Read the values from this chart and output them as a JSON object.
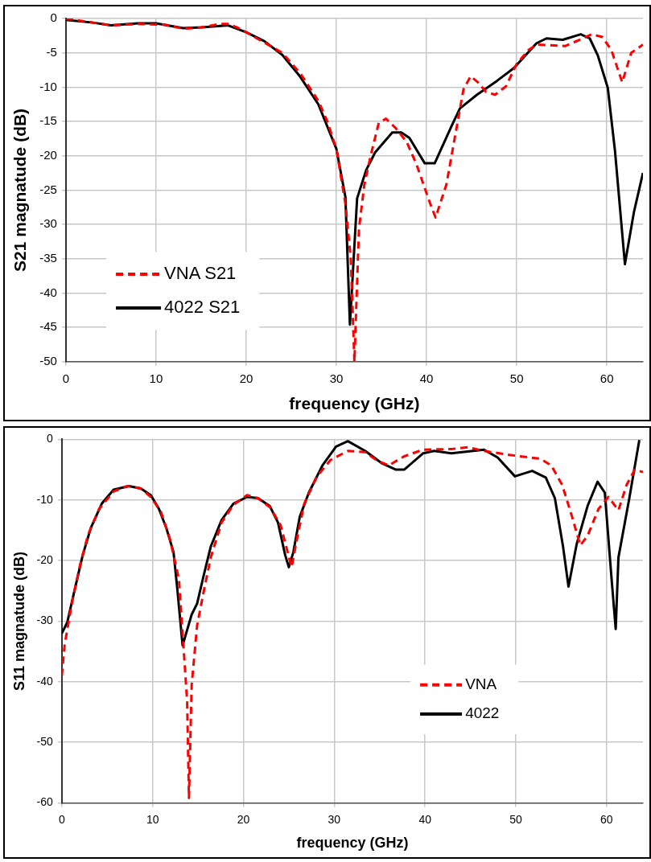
{
  "chart_data": [
    {
      "type": "line",
      "xlabel": "frequency (GHz)",
      "ylabel": "S21 magnatude (dB)",
      "xlim": [
        0,
        64
      ],
      "xticks": [
        0,
        10,
        20,
        30,
        40,
        50,
        60
      ],
      "ylim": [
        -50,
        0
      ],
      "yticks": [
        0,
        -5,
        -10,
        -15,
        -20,
        -25,
        -30,
        -35,
        -40,
        -45,
        -50
      ],
      "grid": true,
      "legend": "bottom left",
      "marker": "none",
      "series": [
        {
          "name": "VNA S21",
          "color": "#ff0000",
          "line_style": "dashed",
          "x": [
            0,
            3,
            5,
            8,
            11,
            13,
            15,
            17,
            18,
            19,
            20,
            22,
            24,
            26,
            28,
            29,
            30,
            31,
            31.6,
            32,
            32.5,
            33.1,
            33.8,
            34.7,
            35.5,
            36.6,
            37.8,
            38.9,
            40.3,
            41,
            42.2,
            43.1,
            44.1,
            44.9,
            45.7,
            46.6,
            47.6,
            48.8,
            50,
            51.3,
            52.2,
            55.4,
            57,
            58.3,
            59.5,
            60.5,
            61.7,
            62.7,
            64
          ],
          "values": [
            0,
            -0.6,
            -1,
            -0.8,
            -0.9,
            -1.5,
            -1.3,
            -0.8,
            -0.8,
            -1.3,
            -2,
            -3.5,
            -5,
            -8,
            -12,
            -15,
            -19,
            -27,
            -35,
            -50,
            -30.7,
            -24.2,
            -20,
            -15.2,
            -14.6,
            -16,
            -18,
            -21.3,
            -26.6,
            -29,
            -24.2,
            -17.6,
            -10.3,
            -8.4,
            -9.3,
            -10.7,
            -11.1,
            -9.9,
            -6.6,
            -4.6,
            -3.8,
            -4,
            -3.1,
            -2.3,
            -2.7,
            -4.6,
            -9.3,
            -5,
            -3.8
          ]
        },
        {
          "name": "4022 S21",
          "color": "#000000",
          "line_style": "solid",
          "x": [
            0,
            3,
            5,
            8,
            10,
            13,
            15,
            18,
            20,
            22,
            24,
            26,
            28,
            30,
            31,
            31.5,
            32.3,
            33.3,
            34.3,
            36.2,
            37.2,
            38.1,
            39.8,
            40.9,
            42.8,
            43.7,
            45.6,
            47.8,
            49.7,
            52.2,
            53.3,
            55.1,
            57.1,
            58.1,
            59,
            60.1,
            60.9,
            62,
            63,
            64
          ],
          "values": [
            -0.2,
            -0.6,
            -1,
            -0.7,
            -0.7,
            -1.4,
            -1.3,
            -1,
            -2,
            -3.3,
            -5.3,
            -8.5,
            -12.5,
            -19,
            -26,
            -44.6,
            -26.2,
            -22.1,
            -19.5,
            -16.6,
            -16.6,
            -17.4,
            -21.1,
            -21.1,
            -15.6,
            -13.1,
            -11.1,
            -9.1,
            -7.2,
            -3.6,
            -2.9,
            -3.1,
            -2.3,
            -2.9,
            -5.4,
            -10.1,
            -19.3,
            -35.8,
            -28.2,
            -22.5
          ]
        }
      ]
    },
    {
      "type": "line",
      "xlabel": "frequency (GHz)",
      "ylabel": "S11 magnatude (dB)",
      "xlim": [
        0,
        64
      ],
      "xticks": [
        0,
        10,
        20,
        30,
        40,
        50,
        60
      ],
      "ylim": [
        -60,
        0
      ],
      "yticks": [
        0,
        -10,
        -20,
        -30,
        -40,
        -50,
        -60
      ],
      "grid": true,
      "legend": "right",
      "marker": "none",
      "series": [
        {
          "name": "VNA",
          "color": "#ff0000",
          "line_style": "dashed",
          "x": [
            0,
            0.3,
            1.1,
            2,
            2.9,
            4.1,
            5.7,
            7.2,
            8.7,
            9.8,
            10.9,
            11.9,
            12.9,
            13.3,
            13.8,
            14,
            14.3,
            14.9,
            15.6,
            16.4,
            17.6,
            18.9,
            20.4,
            21.6,
            23,
            24.1,
            24.8,
            25.3,
            25.9,
            26.7,
            28.1,
            29.6,
            31.5,
            33.4,
            34.6,
            36,
            37.7,
            39.8,
            42.9,
            44.7,
            46.5,
            49,
            50.5,
            52.7,
            53.9,
            55.1,
            56.2,
            57.1,
            57.9,
            59.1,
            60.2,
            61.3,
            62.2,
            63.1,
            64
          ],
          "values": [
            -39,
            -34,
            -27.1,
            -20.8,
            -15.7,
            -11.5,
            -8.6,
            -7.7,
            -8.1,
            -9.5,
            -11.9,
            -16.4,
            -23.1,
            -32,
            -43.2,
            -59.2,
            -40.5,
            -30.7,
            -25.3,
            -19.5,
            -13.7,
            -10.8,
            -9.2,
            -9.7,
            -11.3,
            -14.2,
            -18.2,
            -21.1,
            -16.4,
            -10.6,
            -6.1,
            -3.4,
            -1.9,
            -2.1,
            -3.4,
            -4.3,
            -2.8,
            -1.7,
            -1.6,
            -1.3,
            -1.9,
            -2.5,
            -2.8,
            -3.2,
            -4.3,
            -7.5,
            -12.8,
            -17.5,
            -15.9,
            -11.5,
            -9.5,
            -11.7,
            -7.5,
            -5,
            -5.4
          ]
        },
        {
          "name": "4022",
          "color": "#000000",
          "line_style": "solid",
          "x": [
            0,
            0.6,
            1.4,
            2.3,
            3.2,
            4.4,
            5.7,
            7.4,
            8.7,
            9.8,
            10.7,
            11.5,
            12.3,
            12.7,
            13.3,
            14.3,
            14.9,
            15.6,
            16.4,
            17.6,
            18.9,
            20.4,
            21.6,
            22.9,
            23.8,
            24.6,
            25,
            25.5,
            26.2,
            27.2,
            28.7,
            30.2,
            31.5,
            33.4,
            35.2,
            36.8,
            37.7,
            39.8,
            41,
            42.9,
            44.7,
            46.5,
            48,
            49.9,
            51.8,
            53.3,
            54.3,
            55.2,
            55.8,
            56.7,
            57.9,
            59,
            59.8,
            60.5,
            61,
            61.3,
            62.5,
            63.6
          ],
          "values": [
            -32,
            -30.2,
            -24.9,
            -19.1,
            -14.6,
            -10.6,
            -8.3,
            -7.7,
            -8.1,
            -9.2,
            -11.5,
            -14.6,
            -18.6,
            -24.4,
            -34,
            -28.9,
            -27.1,
            -22.6,
            -17.7,
            -13.3,
            -10.6,
            -9.5,
            -9.7,
            -11,
            -13.7,
            -19.1,
            -21.1,
            -18.6,
            -12.8,
            -8.8,
            -4.3,
            -1.2,
            -0.3,
            -1.9,
            -3.9,
            -5,
            -5,
            -2.3,
            -1.9,
            -2.3,
            -2,
            -1.7,
            -3,
            -6.1,
            -5.2,
            -6.3,
            -9.7,
            -17.7,
            -24.3,
            -17.3,
            -11,
            -7,
            -8.8,
            -22.2,
            -31.3,
            -19.5,
            -9.7,
            -0.1
          ]
        }
      ]
    }
  ]
}
